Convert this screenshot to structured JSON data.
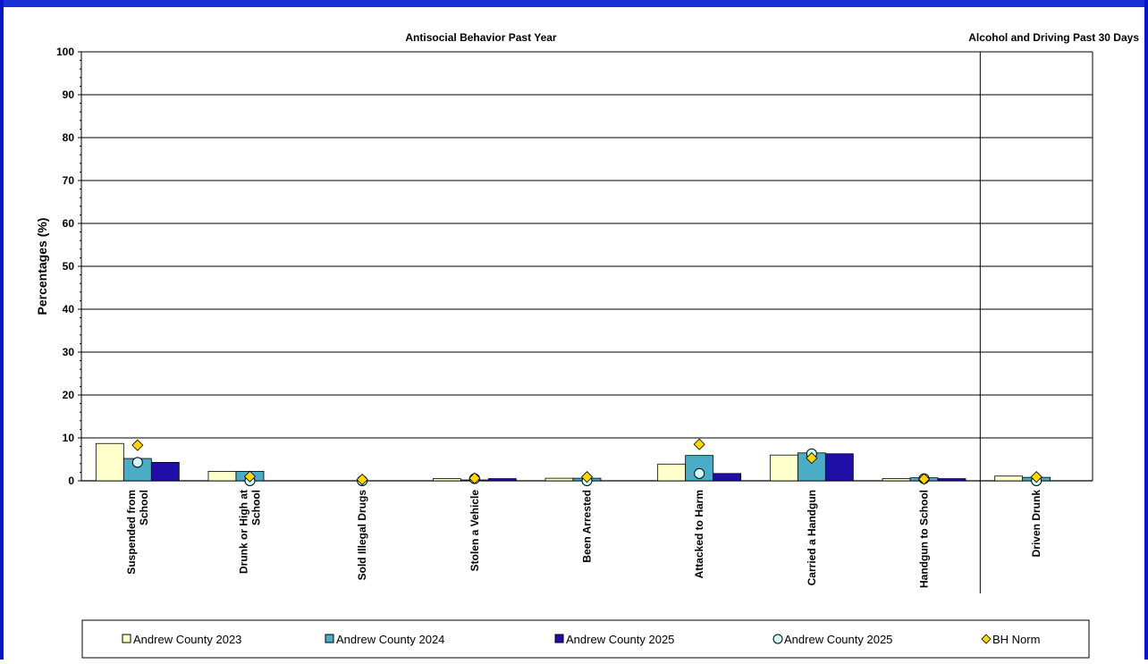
{
  "chart_data": {
    "type": "bar",
    "section_titles": [
      "Antisocial Behavior Past Year",
      "Alcohol and Driving Past 30 Days"
    ],
    "ylabel": "Percentages (%)",
    "ylim": [
      0,
      100
    ],
    "yticks": [
      0,
      10,
      20,
      30,
      40,
      50,
      60,
      70,
      80,
      90,
      100
    ],
    "grid": true,
    "legend_position": "bottom",
    "categories": [
      "Suspended from School",
      "Drunk or High at School",
      "Sold Illegal Drugs",
      "Stolen a Vehicle",
      "Been Arrested",
      "Attacked to Harm",
      "Carried a Handgun",
      "Handgun to School",
      "Driven Drunk"
    ],
    "category_lines": [
      [
        "Suspended from",
        "School"
      ],
      [
        "Drunk or High at",
        "School"
      ],
      [
        "Sold Illegal Drugs"
      ],
      [
        "Stolen a Vehicle"
      ],
      [
        "Been Arrested"
      ],
      [
        "Attacked to Harm"
      ],
      [
        "Carried a Handgun"
      ],
      [
        "Handgun to School"
      ],
      [
        "Driven Drunk"
      ]
    ],
    "bar_series": [
      {
        "name": "Andrew County 2023",
        "color": "#FFFFCC",
        "values": [
          8.7,
          2.2,
          0.0,
          0.5,
          0.6,
          3.9,
          6.0,
          0.5,
          1.1
        ]
      },
      {
        "name": "Andrew County 2024",
        "color": "#4BACC6",
        "values": [
          5.2,
          2.2,
          0.0,
          0.2,
          0.6,
          5.9,
          6.5,
          0.7,
          0.8
        ]
      },
      {
        "name": "Andrew County 2025",
        "color": "#1F0FA6",
        "values": [
          4.3,
          0.0,
          0.0,
          0.5,
          0.0,
          1.7,
          6.3,
          0.5,
          0.0
        ]
      }
    ],
    "marker_series": [
      {
        "name": "Andrew County 2025",
        "marker": "circle",
        "color": "#CCFFFF",
        "values": [
          4.3,
          0.0,
          0.0,
          0.5,
          0.0,
          1.7,
          6.3,
          0.5,
          0.0
        ]
      },
      {
        "name": "BH Norm",
        "marker": "diamond",
        "color": "#FFD700",
        "values": [
          8.3,
          1.0,
          0.3,
          0.6,
          0.9,
          8.5,
          5.3,
          0.4,
          0.9
        ]
      }
    ],
    "legend": [
      {
        "label": "Andrew County 2023",
        "swatch": "square",
        "color": "#FFFFCC"
      },
      {
        "label": "Andrew County 2024",
        "swatch": "square",
        "color": "#4BACC6"
      },
      {
        "label": "Andrew County 2025",
        "swatch": "square",
        "color": "#1F0FA6"
      },
      {
        "label": "Andrew County 2025",
        "swatch": "circle",
        "color": "#CCFFFF"
      },
      {
        "label": "BH Norm",
        "swatch": "diamond",
        "color": "#FFD700"
      }
    ]
  },
  "colors": {
    "frame_blue": "#0A14C8",
    "frame_top": "#1A2FD6"
  }
}
